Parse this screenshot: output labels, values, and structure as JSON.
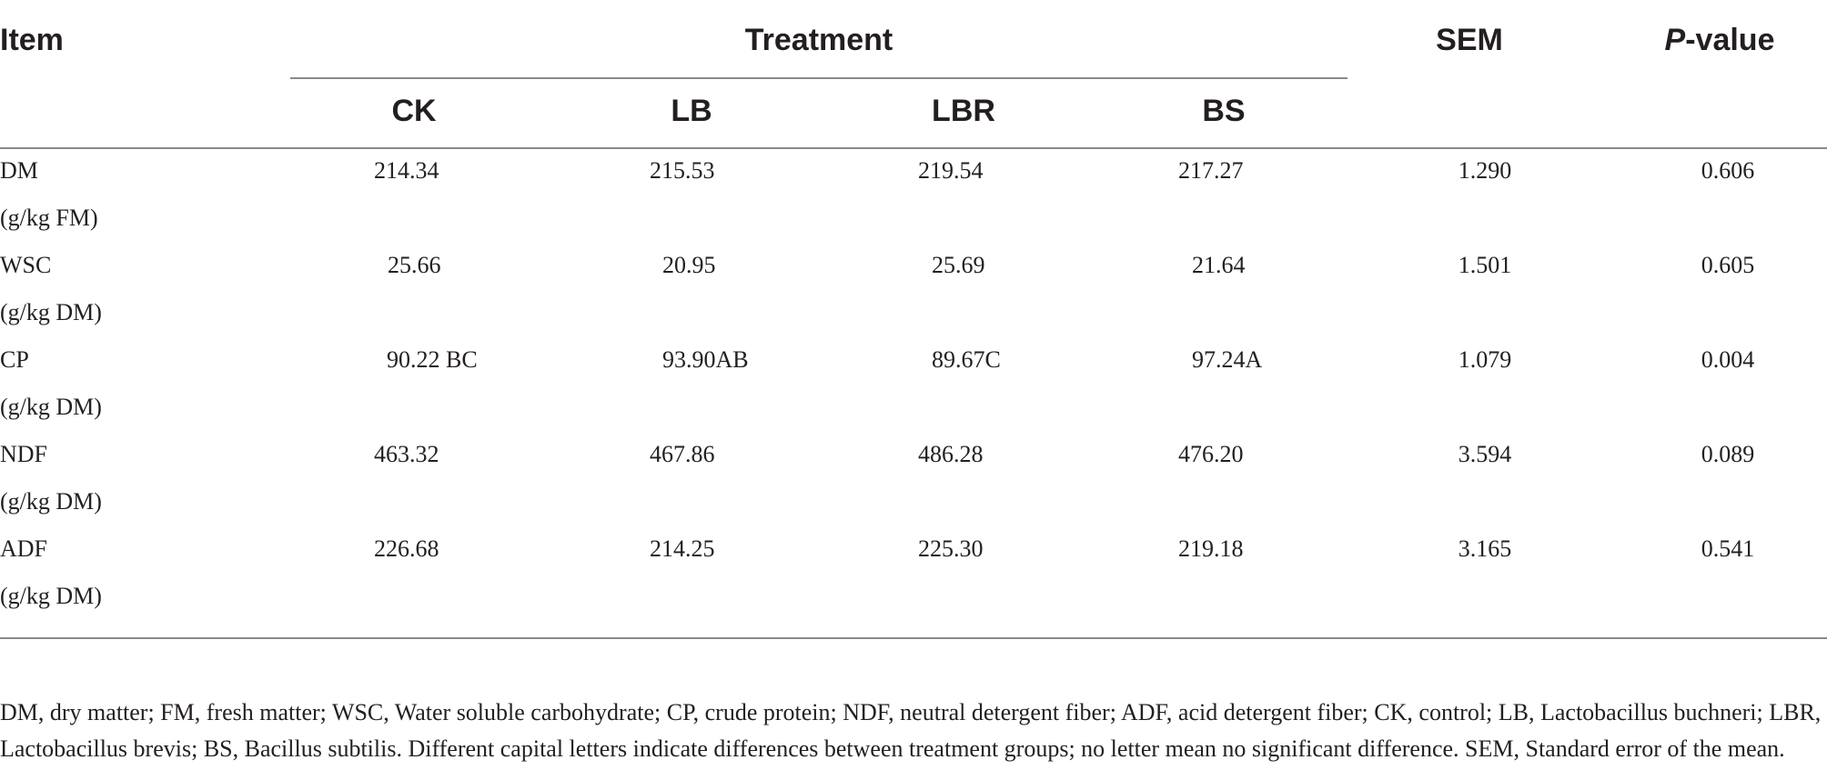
{
  "table": {
    "headers": {
      "item": "Item",
      "treatment": "Treatment",
      "sem": "SEM",
      "pvalue_prefix": "P",
      "pvalue_suffix": "-value",
      "groups": [
        "CK",
        "LB",
        "LBR",
        "BS"
      ]
    },
    "rows": [
      {
        "item": "DM",
        "unit": "(g/kg FM)",
        "ck": "214.34",
        "lb": "215.53",
        "lbr": "219.54",
        "bs": "217.27",
        "sem": "1.290",
        "p": "0.606"
      },
      {
        "item": "WSC",
        "unit": "(g/kg DM)",
        "ck": "25.66",
        "lb": "20.95",
        "lbr": "25.69",
        "bs": "21.64",
        "sem": "1.501",
        "p": "0.605"
      },
      {
        "item": "CP",
        "unit": "(g/kg DM)",
        "ck": "90.22 BC",
        "lb": "93.90AB",
        "lbr": "89.67C",
        "bs": "97.24A",
        "sem": "1.079",
        "p": "0.004"
      },
      {
        "item": "NDF",
        "unit": "(g/kg DM)",
        "ck": "463.32",
        "lb": "467.86",
        "lbr": "486.28",
        "bs": "476.20",
        "sem": "3.594",
        "p": "0.089"
      },
      {
        "item": "ADF",
        "unit": "(g/kg DM)",
        "ck": "226.68",
        "lb": "214.25",
        "lbr": "225.30",
        "bs": "219.18",
        "sem": "3.165",
        "p": "0.541"
      }
    ],
    "footnote": "DM, dry matter; FM, fresh matter; WSC, Water soluble carbohydrate; CP, crude protein; NDF, neutral detergent fiber; ADF, acid detergent fiber; CK, control; LB, Lactobacillus buchneri; LBR, Lactobacillus brevis; BS, Bacillus subtilis. Different capital letters indicate differences between treatment groups; no letter mean no significant difference. SEM, Standard error of the mean."
  }
}
